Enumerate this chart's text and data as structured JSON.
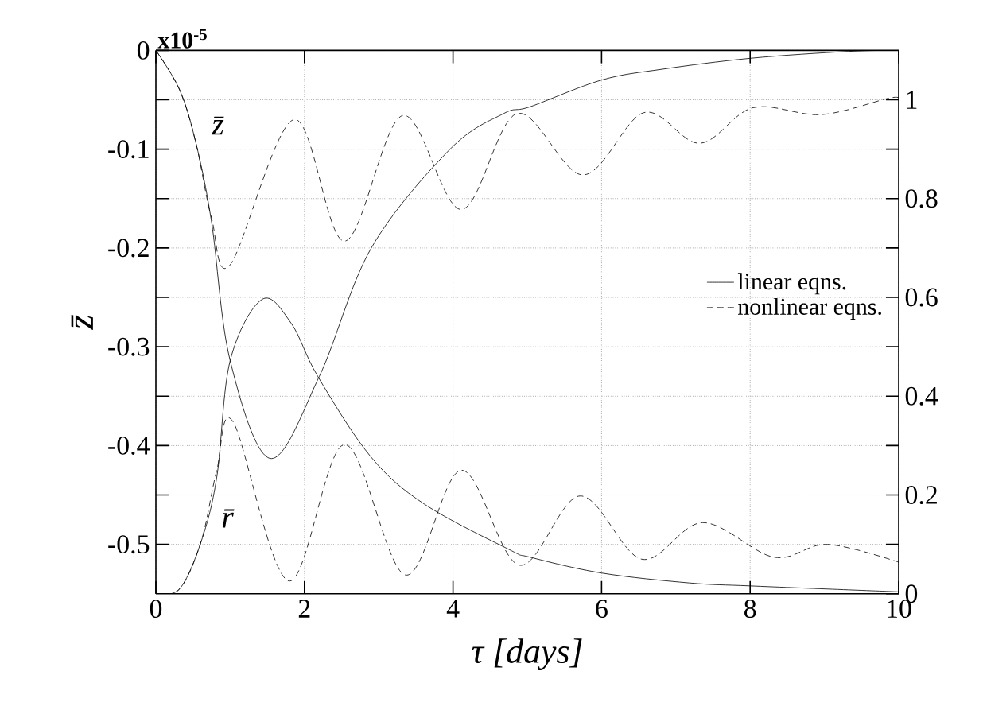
{
  "chart_data": {
    "type": "line",
    "xlabel": "τ [days]",
    "ylabel": "z̄",
    "xlim": [
      0,
      10
    ],
    "xticks": [
      0,
      2,
      4,
      6,
      8,
      10
    ],
    "ylim": [
      -0.55,
      0
    ],
    "yticks": [
      -0.5,
      {
        "value": -0.45,
        "label": null
      },
      -0.4,
      {
        "value": -0.35,
        "label": null
      },
      -0.3,
      {
        "value": -0.25,
        "label": null
      },
      -0.2,
      {
        "value": -0.15,
        "label": null
      },
      -0.1,
      {
        "value": -0.05,
        "label": null
      },
      0
    ],
    "y2lim": [
      0,
      1.1
    ],
    "y2ticks": [
      0,
      {
        "value": 0.1,
        "label": null
      },
      0.2,
      {
        "value": 0.3,
        "label": null
      },
      0.4,
      {
        "value": 0.5,
        "label": null
      },
      0.6,
      {
        "value": 0.7,
        "label": null
      },
      0.8,
      {
        "value": 0.9,
        "label": null
      },
      1
    ],
    "grid": true,
    "legend": "right",
    "annotations": [
      "x10$^{-5}$",
      "z̄",
      "r̄"
    ],
    "series": [
      {
        "name": "linear eqns.",
        "color": "#000000",
        "line_style": "solid",
        "x": [
          0,
          0.32,
          0.54,
          0.75,
          1.0,
          1.54,
          2.2,
          2.9,
          3.96,
          4.68,
          5.04,
          6,
          6.82,
          8,
          9.32,
          10
        ],
        "values": [
          0,
          -0.04,
          -0.094,
          -0.174,
          -0.314,
          -0.413,
          -0.33,
          -0.2,
          -0.1,
          -0.064,
          -0.057,
          -0.03,
          -0.019,
          -0.008,
          -0.001,
          0
        ]
      },
      {
        "name": "nonlinear eqns.",
        "color": "#000000",
        "line_style": "dashed",
        "x": [
          0,
          0.32,
          0.54,
          0.75,
          1.0,
          1.86,
          2.54,
          3.32,
          4.11,
          4.86,
          5.75,
          6.57,
          7.32,
          8.04,
          8.96,
          9.89,
          10
        ],
        "values": [
          0,
          -0.04,
          -0.094,
          -0.17,
          -0.217,
          -0.07,
          -0.193,
          -0.066,
          -0.161,
          -0.064,
          -0.126,
          -0.063,
          -0.094,
          -0.058,
          -0.065,
          -0.048,
          -0.051
        ]
      },
      {
        "color": "#000000",
        "line_style": "solid",
        "axis": "y2",
        "x": [
          0,
          0.32,
          0.61,
          0.82,
          1.0,
          1.43,
          1.82,
          2.18,
          2.89,
          3.61,
          4.75,
          5.04,
          6,
          7.18,
          8,
          9.32,
          10
        ],
        "values": [
          0,
          0.01,
          0.106,
          0.236,
          0.472,
          0.596,
          0.548,
          0.44,
          0.278,
          0.182,
          0.09,
          0.074,
          0.042,
          0.022,
          0.016,
          0.008,
          0.004
        ]
      },
      {
        "color": "#000000",
        "line_style": "dashed",
        "axis": "y2",
        "x": [
          0,
          0.32,
          0.61,
          0.82,
          1.04,
          1.79,
          2.54,
          3.36,
          4.11,
          4.89,
          5.71,
          6.54,
          7.36,
          8.32,
          9.04,
          10
        ],
        "values": [
          0,
          0.01,
          0.106,
          0.25,
          0.348,
          0.026,
          0.302,
          0.038,
          0.25,
          0.058,
          0.198,
          0.07,
          0.144,
          0.074,
          0.1,
          0.064
        ]
      }
    ]
  }
}
